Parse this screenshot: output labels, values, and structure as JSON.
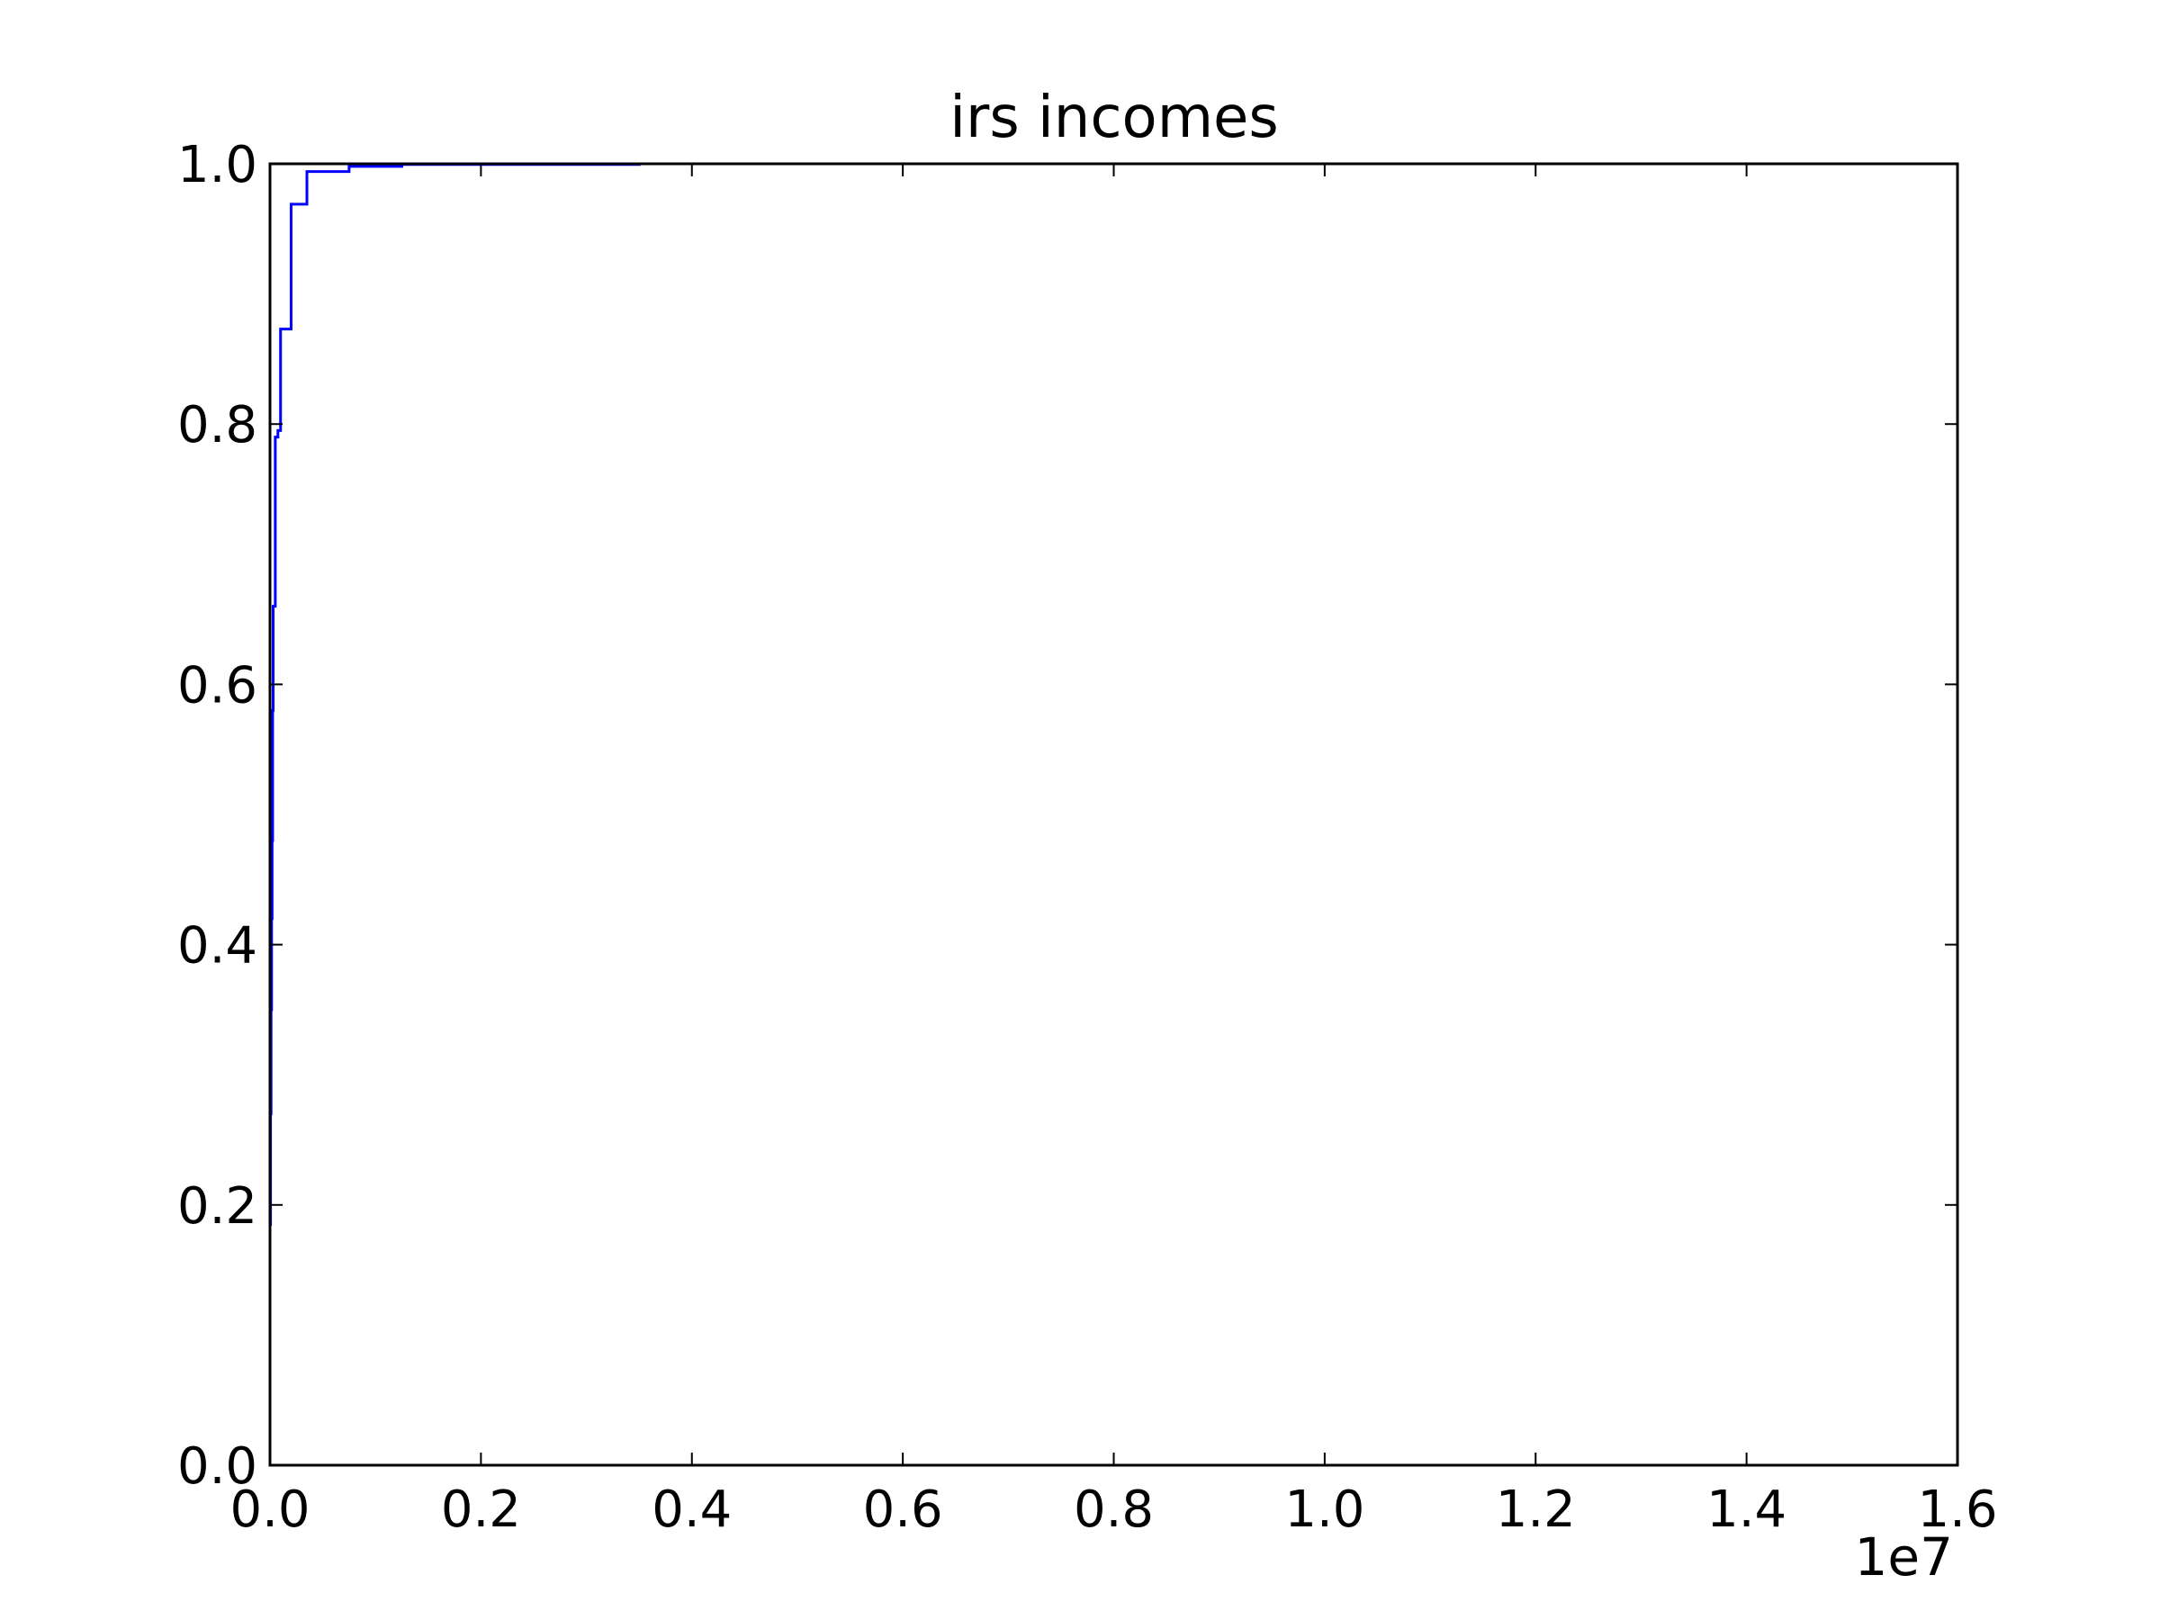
{
  "chart_data": {
    "type": "line",
    "title": "irs incomes",
    "xlabel": "",
    "ylabel": "",
    "x_multiplier_label": "1e7",
    "xlim": [
      0,
      16000000
    ],
    "ylim": [
      0.0,
      1.0
    ],
    "xticks": [
      0,
      2000000,
      4000000,
      6000000,
      8000000,
      10000000,
      12000000,
      14000000,
      16000000
    ],
    "xtick_labels": [
      "0.0",
      "0.2",
      "0.4",
      "0.6",
      "0.8",
      "1.0",
      "1.2",
      "1.4",
      "1.6"
    ],
    "yticks": [
      0.0,
      0.2,
      0.4,
      0.6,
      0.8,
      1.0
    ],
    "ytick_labels": [
      "0.0",
      "0.2",
      "0.4",
      "0.6",
      "0.8",
      "1.0"
    ],
    "grid": false,
    "legend": "none",
    "series": [
      {
        "color": "#0000ff",
        "drawstyle": "steps-post",
        "x": [
          0,
          5000,
          10000,
          15000,
          20000,
          25000,
          30000,
          40000,
          50000,
          75000,
          100000,
          200000,
          350000,
          750000,
          1250000,
          3500000
        ],
        "y": [
          0.185,
          0.27,
          0.35,
          0.42,
          0.48,
          0.58,
          0.66,
          0.66,
          0.79,
          0.795,
          0.873,
          0.969,
          0.994,
          0.998,
          0.9995,
          1.0
        ]
      }
    ]
  }
}
